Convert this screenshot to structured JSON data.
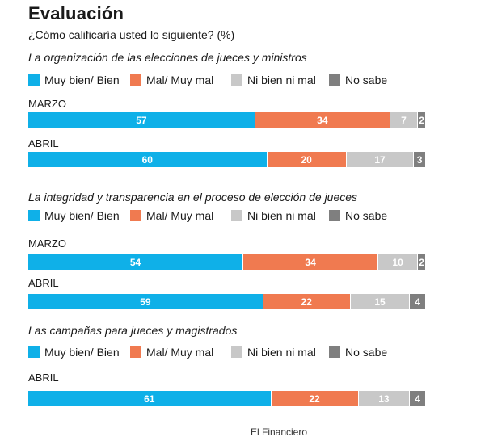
{
  "title": "Evaluación",
  "subtitle": "¿Cómo calificaría usted lo siguiente? (%)",
  "source": "El Financiero",
  "legend": [
    {
      "label": "Muy bien/ Bien",
      "color": "#0fb0e8"
    },
    {
      "label": "Mal/ Muy mal",
      "color": "#f07a50"
    },
    {
      "label": "Ni bien ni mal",
      "color": "#c8c8c8"
    },
    {
      "label": "No sabe",
      "color": "#7f7f7f"
    }
  ],
  "chart_data": {
    "type": "bar",
    "orientation": "horizontal",
    "stacked": true,
    "unit": "%",
    "categories_order": [
      "Muy bien/ Bien",
      "Mal/ Muy mal",
      "Ni bien ni mal",
      "No sabe"
    ],
    "sections": [
      {
        "title": "La organización de las elecciones de jueces y ministros",
        "bars": [
          {
            "label": "MARZO",
            "values": [
              57,
              34,
              7,
              2
            ]
          },
          {
            "label": "ABRIL",
            "values": [
              60,
              20,
              17,
              3
            ]
          }
        ]
      },
      {
        "title": "La integridad y transparencia en el proceso de elección de jueces",
        "bars": [
          {
            "label": "MARZO",
            "values": [
              54,
              34,
              10,
              2
            ]
          },
          {
            "label": "ABRIL",
            "values": [
              59,
              22,
              15,
              4
            ]
          }
        ]
      },
      {
        "title": "Las campañas para jueces y magistrados",
        "bars": [
          {
            "label": "ABRIL",
            "values": [
              61,
              22,
              13,
              4
            ]
          }
        ]
      }
    ]
  }
}
